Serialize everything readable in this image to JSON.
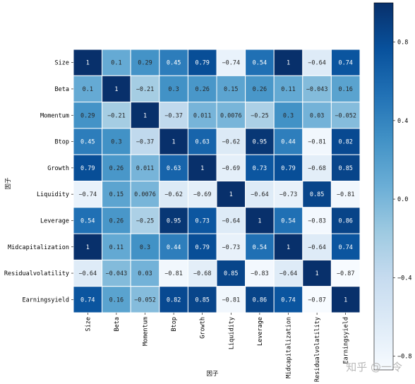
{
  "watermark": "知乎 @一令",
  "chart_data": {
    "type": "heatmap",
    "xlabel": "因子",
    "ylabel": "因子",
    "labels": [
      "Size",
      "Beta",
      "Momentum",
      "Btop",
      "Growth",
      "Liquidity",
      "Leverage",
      "Midcapitalization",
      "Residualvolatility",
      "Earningsyield"
    ],
    "values": [
      [
        1,
        0.1,
        0.29,
        0.45,
        0.79,
        -0.74,
        0.54,
        1,
        -0.64,
        0.74
      ],
      [
        0.1,
        1,
        -0.21,
        0.3,
        0.26,
        0.15,
        0.26,
        0.11,
        -0.043,
        0.16
      ],
      [
        0.29,
        -0.21,
        1,
        -0.37,
        0.011,
        0.0076,
        -0.25,
        0.3,
        0.03,
        -0.052
      ],
      [
        0.45,
        0.3,
        -0.37,
        1,
        0.63,
        -0.62,
        0.95,
        0.44,
        -0.81,
        0.82
      ],
      [
        0.79,
        0.26,
        0.011,
        0.63,
        1,
        -0.69,
        0.73,
        0.79,
        -0.68,
        0.85
      ],
      [
        -0.74,
        0.15,
        0.0076,
        -0.62,
        -0.69,
        1,
        -0.64,
        -0.73,
        0.85,
        -0.81
      ],
      [
        0.54,
        0.26,
        -0.25,
        0.95,
        0.73,
        -0.64,
        1,
        0.54,
        -0.83,
        0.86
      ],
      [
        1,
        0.11,
        0.3,
        0.44,
        0.79,
        -0.73,
        0.54,
        1,
        -0.64,
        0.74
      ],
      [
        -0.64,
        -0.043,
        0.03,
        -0.81,
        -0.68,
        0.85,
        -0.83,
        -0.64,
        1,
        -0.87
      ],
      [
        0.74,
        0.16,
        -0.052,
        0.82,
        0.85,
        -0.81,
        0.86,
        0.74,
        -0.87,
        1
      ]
    ],
    "value_range": [
      -0.87,
      1
    ],
    "colormap": "Blues",
    "colorbar_ticks": [
      -0.8,
      -0.4,
      0.0,
      0.4,
      0.8
    ],
    "colorbar_tick_labels": [
      "−0.8",
      "−0.4",
      "0.0",
      "0.4",
      "0.8"
    ],
    "cell_border_color": "#ffffff",
    "grid": false
  }
}
